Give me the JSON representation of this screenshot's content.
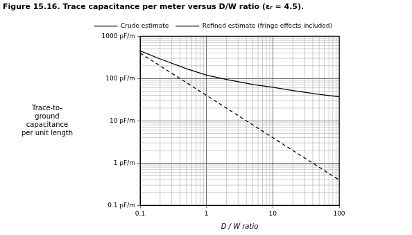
{
  "chart_data": {
    "type": "line",
    "title": "Figure 15.16. Trace capacitance per meter versus D/W ratio (εᵣ = 4.5).",
    "x_label": "D / W ratio",
    "y_label": [
      "Trace-to-",
      "ground",
      "capacitance",
      "per unit length"
    ],
    "x": [
      0.1,
      0.2,
      0.5,
      1,
      2,
      5,
      10,
      20,
      50,
      100
    ],
    "series": [
      {
        "name": "Crude estimate",
        "color": "#000000",
        "line_style": "dashed",
        "values": [
          398,
          199,
          79.6,
          39.8,
          19.9,
          7.96,
          3.98,
          1.99,
          0.796,
          0.398
        ]
      },
      {
        "name": "Refined estimate (fringe effects included)",
        "color": "#000000",
        "line_style": "solid",
        "values": [
          450,
          290,
          170,
          120,
          95,
          72,
          62,
          52,
          42,
          37
        ]
      }
    ],
    "xlim": [
      0.1,
      100
    ],
    "ylim": [
      0.1,
      1000
    ],
    "xticks": [
      0.1,
      1,
      10,
      100
    ],
    "yticks": [
      {
        "value": 0.1,
        "label": "0.1 pF/m"
      },
      {
        "value": 1,
        "label": "1 pF/m"
      },
      {
        "value": 10,
        "label": "10 pF/m"
      },
      {
        "value": 100,
        "label": "100 pF/m"
      },
      {
        "value": 1000,
        "label": "1000 pF/m"
      }
    ],
    "log": true,
    "grid": true,
    "legend": "top right"
  }
}
